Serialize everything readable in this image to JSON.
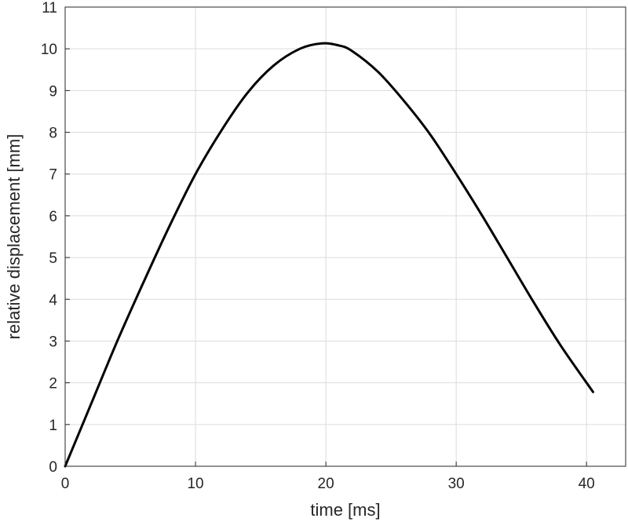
{
  "chart_data": {
    "type": "line",
    "title": "",
    "xlabel": "time [ms]",
    "ylabel": "relative displacement [mm]",
    "xlim": [
      0,
      43
    ],
    "ylim": [
      0,
      11
    ],
    "xticks": [
      0,
      10,
      20,
      30,
      40
    ],
    "yticks": [
      0,
      1,
      2,
      3,
      4,
      5,
      6,
      7,
      8,
      9,
      10,
      11
    ],
    "grid": true,
    "box": true,
    "series": [
      {
        "color": "#000000",
        "x": [
          0,
          2,
          4,
          6,
          8,
          10,
          12,
          14,
          16,
          18,
          19.7,
          21,
          22,
          24,
          26,
          28,
          30,
          32,
          34,
          36,
          38,
          40.5
        ],
        "y": [
          0,
          1.5,
          3.0,
          4.4,
          5.75,
          7.0,
          8.05,
          8.95,
          9.6,
          10.0,
          10.13,
          10.08,
          9.95,
          9.45,
          8.75,
          7.95,
          7.0,
          6.0,
          4.95,
          3.9,
          2.9,
          1.78
        ]
      }
    ]
  }
}
